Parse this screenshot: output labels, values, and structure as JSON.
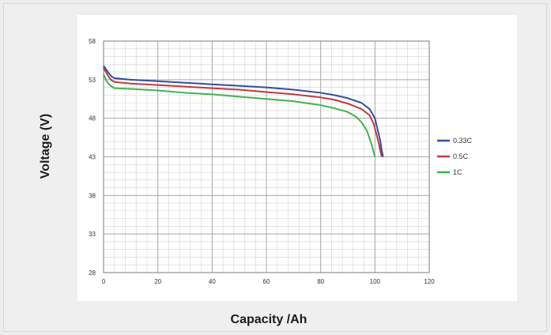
{
  "chart_data": {
    "type": "line",
    "title": "",
    "xlabel": "Capacity /Ah",
    "ylabel": "Voltage (V)",
    "xlim": [
      0,
      120
    ],
    "ylim": [
      28,
      58
    ],
    "xticks": [
      0,
      20,
      40,
      60,
      80,
      100,
      120
    ],
    "yticks": [
      28,
      33,
      38,
      43,
      48,
      53,
      58
    ],
    "grid": true,
    "legend_position": "right",
    "series": [
      {
        "name": "0.33C",
        "color": "#2f4fa0",
        "x": [
          0,
          1,
          2,
          3,
          4,
          10,
          20,
          30,
          40,
          50,
          60,
          70,
          80,
          85,
          90,
          95,
          98,
          100,
          101,
          102,
          102.5,
          103
        ],
        "y": [
          54.8,
          54.3,
          53.8,
          53.4,
          53.2,
          53.0,
          52.8,
          52.6,
          52.4,
          52.2,
          52.0,
          51.7,
          51.3,
          51.0,
          50.6,
          50.0,
          49.2,
          48.0,
          46.5,
          45.0,
          43.8,
          43.0
        ]
      },
      {
        "name": "0.5C",
        "color": "#c0393f",
        "x": [
          0,
          1,
          2,
          3,
          4,
          10,
          20,
          30,
          40,
          50,
          60,
          70,
          80,
          85,
          90,
          95,
          98,
          99.5,
          100.5,
          101.5,
          102,
          102.5
        ],
        "y": [
          54.5,
          53.9,
          53.3,
          52.9,
          52.7,
          52.5,
          52.3,
          52.1,
          51.9,
          51.7,
          51.4,
          51.1,
          50.7,
          50.4,
          49.9,
          49.2,
          48.4,
          47.3,
          46.0,
          44.6,
          43.7,
          43.0
        ]
      },
      {
        "name": "1C",
        "color": "#3fb34f",
        "x": [
          0,
          1,
          2,
          3,
          4,
          10,
          20,
          30,
          40,
          50,
          60,
          70,
          80,
          85,
          90,
          93,
          95,
          97,
          98,
          99,
          99.5,
          100
        ],
        "y": [
          53.7,
          52.9,
          52.4,
          52.1,
          51.9,
          51.8,
          51.6,
          51.3,
          51.1,
          50.8,
          50.5,
          50.2,
          49.7,
          49.3,
          48.8,
          48.2,
          47.5,
          46.4,
          45.4,
          44.3,
          43.6,
          43.0
        ]
      }
    ]
  }
}
